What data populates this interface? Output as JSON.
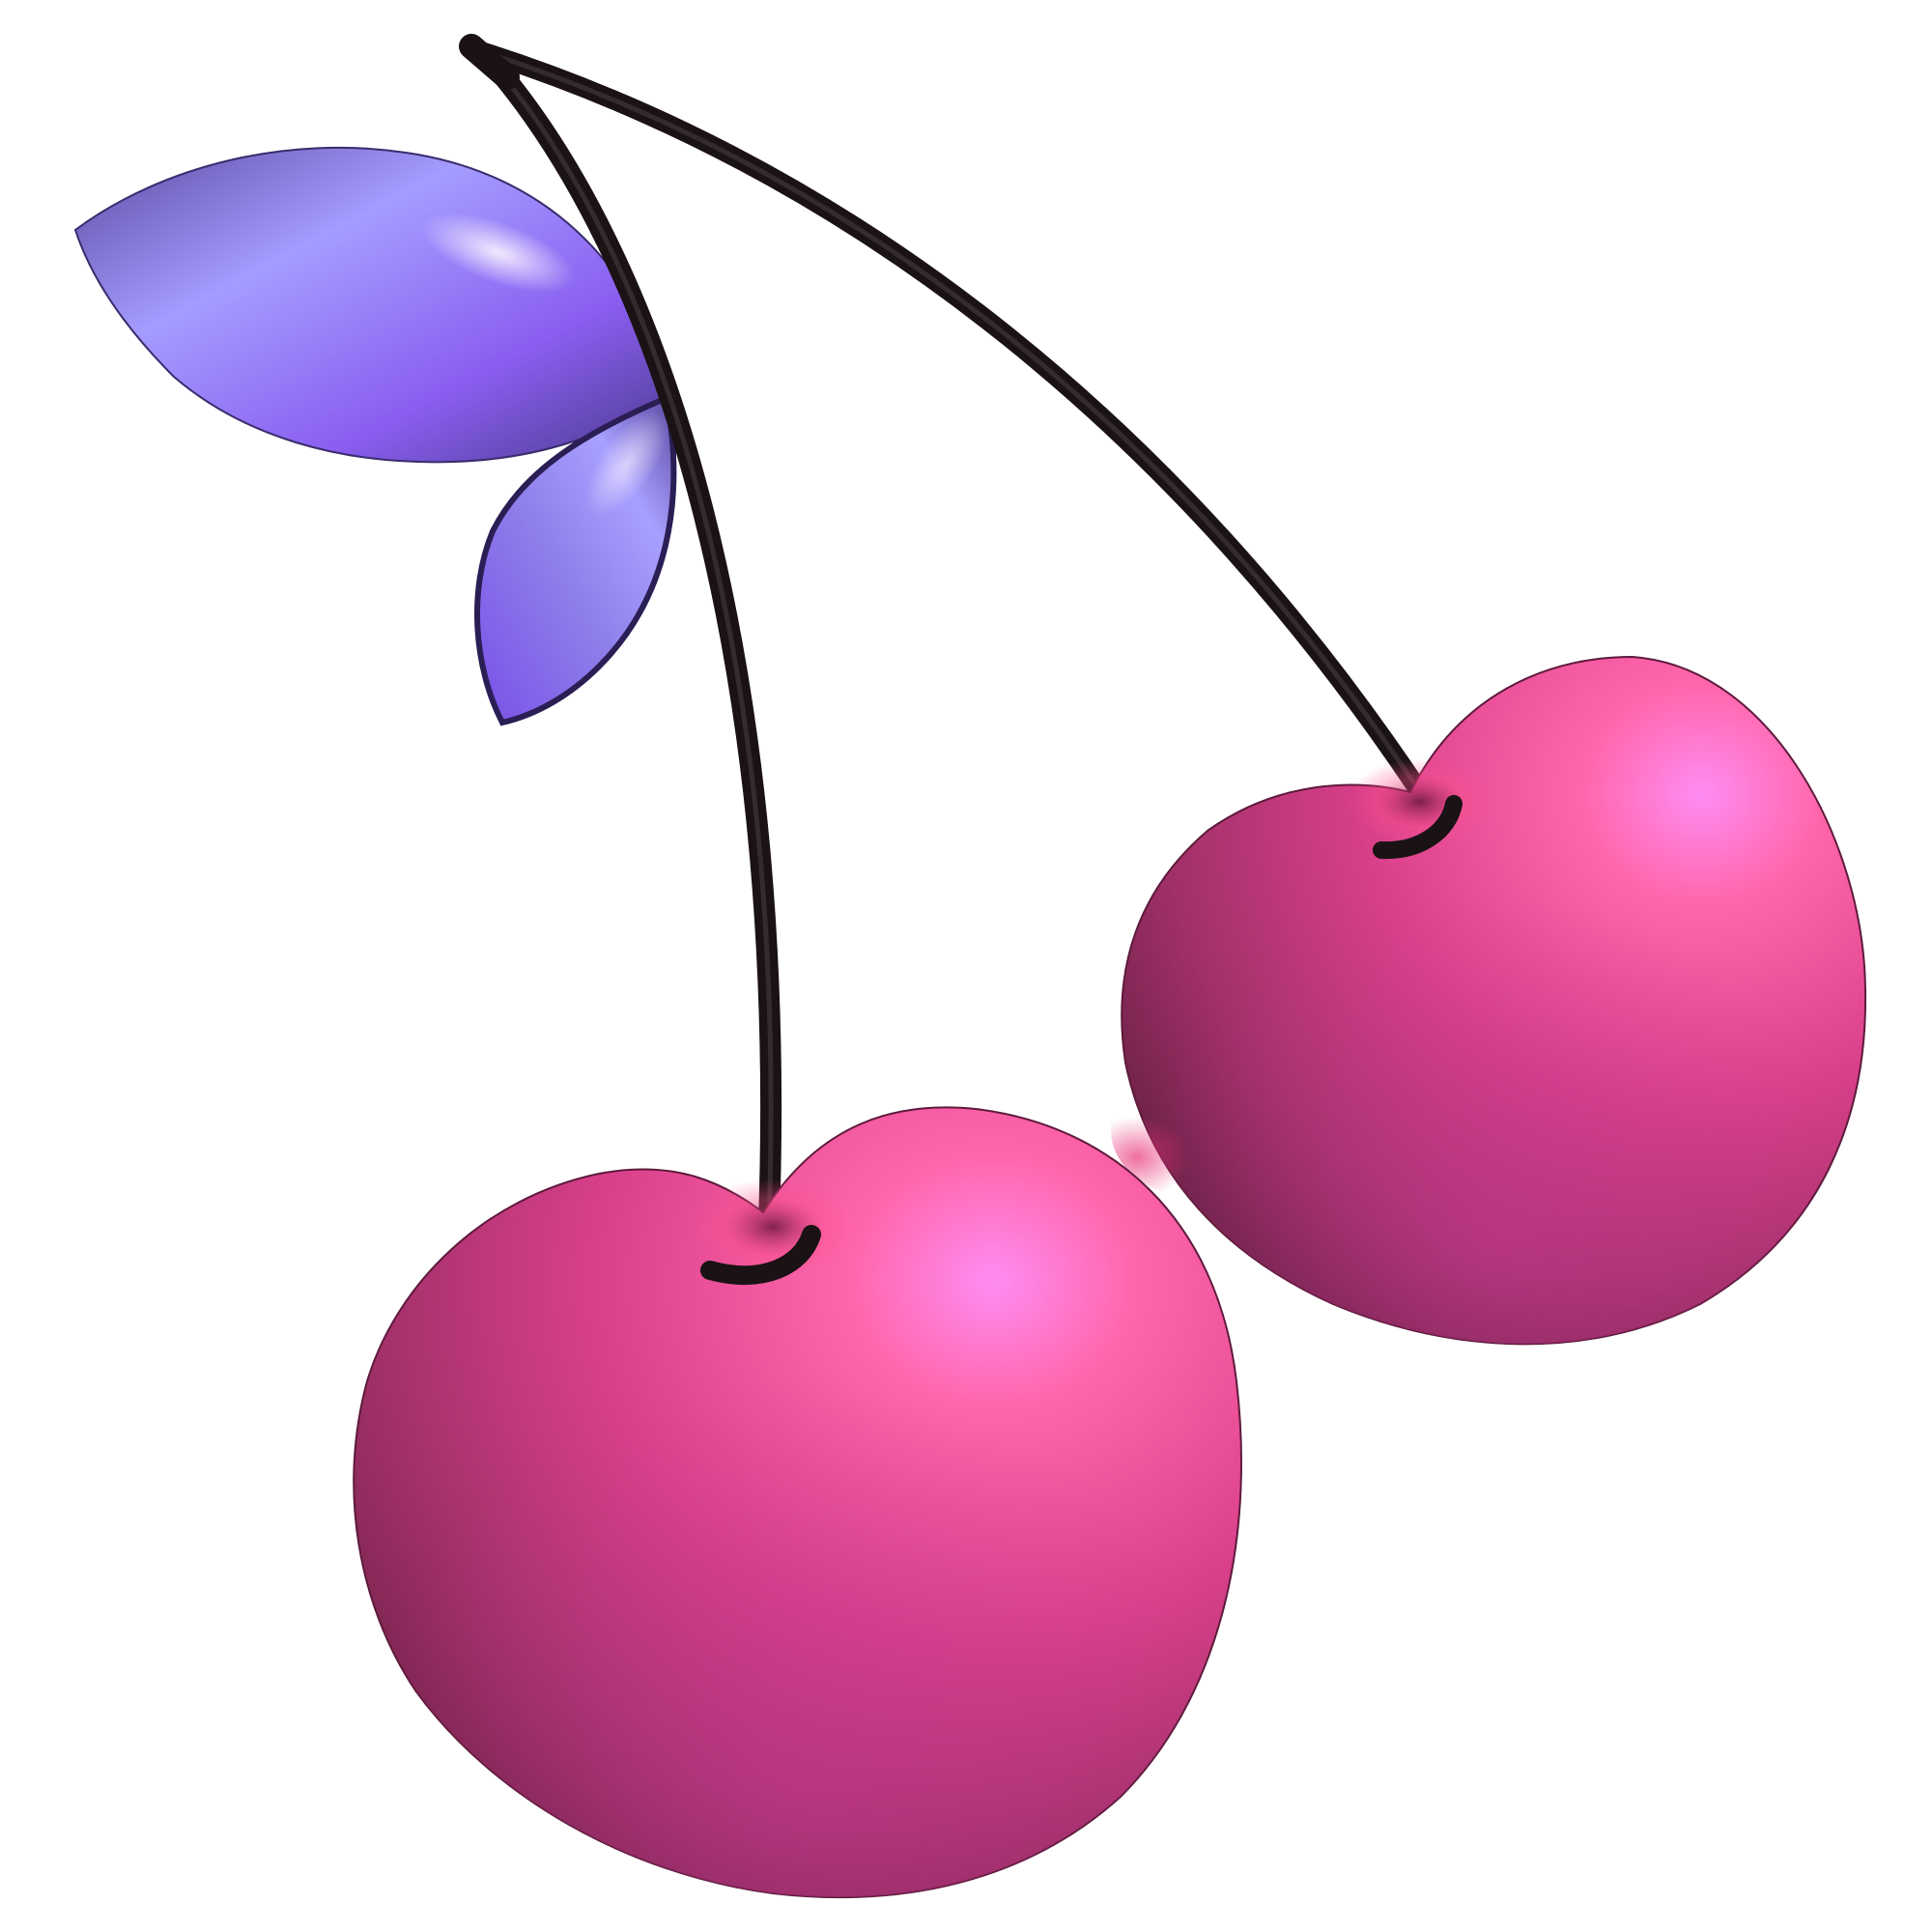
{
  "image": {
    "subject": "cherries",
    "background": "#ffffff",
    "colors": {
      "cherry_highlight": "#ff8cf2",
      "cherry_light": "#ff66aa",
      "cherry_mid": "#d9408a",
      "cherry_dark": "#7a2850",
      "leaf_highlight": "#f2e6ff",
      "leaf_light": "#a49cff",
      "leaf_mid": "#8a5ef0",
      "leaf_dark": "#4a3a8c",
      "stem": "#1a1214"
    }
  }
}
